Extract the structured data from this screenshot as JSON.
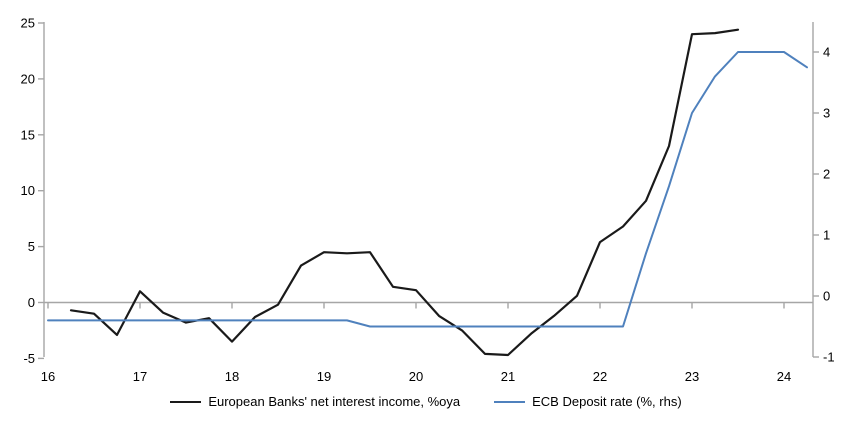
{
  "chart_data": {
    "type": "line",
    "title": "",
    "grid": "zero-gridline-only",
    "legend_position": "bottom-center",
    "x_axis": {
      "ticks": [
        16,
        17,
        18,
        19,
        20,
        21,
        22,
        23,
        24
      ],
      "range": [
        16,
        24.3
      ]
    },
    "left_axis": {
      "ticks": [
        25,
        20,
        15,
        10,
        5,
        0,
        -5
      ],
      "range": [
        -5,
        25
      ]
    },
    "right_axis": {
      "ticks": [
        4,
        3,
        2,
        1,
        0,
        -1
      ],
      "range": [
        -1,
        4.55
      ]
    },
    "series": [
      {
        "name": "European Banks' net interest income, %oya",
        "axis": "left",
        "color": "#1a1a1a",
        "stroke_width": 2.2,
        "x": [
          16.25,
          16.5,
          16.75,
          17,
          17.25,
          17.5,
          17.75,
          18,
          18.25,
          18.5,
          18.75,
          19,
          19.25,
          19.5,
          19.75,
          20,
          20.25,
          20.5,
          20.75,
          21,
          21.25,
          21.5,
          21.75,
          22,
          22.25,
          22.5,
          22.75,
          23,
          23.25,
          23.5
        ],
        "y": [
          -0.7,
          -1.0,
          -2.9,
          1.0,
          -0.9,
          -1.8,
          -1.4,
          -3.5,
          -1.3,
          -0.2,
          3.3,
          4.5,
          4.4,
          4.5,
          1.4,
          1.1,
          -1.2,
          -2.5,
          -4.6,
          -4.7,
          -2.8,
          -1.2,
          0.6,
          5.4,
          6.8,
          9.1,
          14.0,
          24.0,
          24.1,
          24.4
        ]
      },
      {
        "name": "ECB Deposit rate (%, rhs)",
        "axis": "right",
        "color": "#4f81bd",
        "stroke_width": 2,
        "x": [
          16,
          16.25,
          16.5,
          16.75,
          17,
          17.25,
          17.5,
          17.75,
          18,
          18.25,
          18.5,
          18.75,
          19,
          19.25,
          19.5,
          19.75,
          20,
          20.25,
          20.5,
          20.75,
          21,
          21.25,
          21.5,
          21.75,
          22,
          22.25,
          22.5,
          22.75,
          23,
          23.25,
          23.5,
          23.75,
          24,
          24.25
        ],
        "y": [
          -0.4,
          -0.4,
          -0.4,
          -0.4,
          -0.4,
          -0.4,
          -0.4,
          -0.4,
          -0.4,
          -0.4,
          -0.4,
          -0.4,
          -0.4,
          -0.4,
          -0.5,
          -0.5,
          -0.5,
          -0.5,
          -0.5,
          -0.5,
          -0.5,
          -0.5,
          -0.5,
          -0.5,
          -0.5,
          -0.5,
          0.7,
          1.8,
          3.0,
          3.6,
          4.0,
          4.0,
          4.0,
          3.75
        ]
      }
    ]
  },
  "colors": {
    "axis_gray": "#a6a6a6",
    "text": "#000000",
    "background": "#ffffff"
  }
}
